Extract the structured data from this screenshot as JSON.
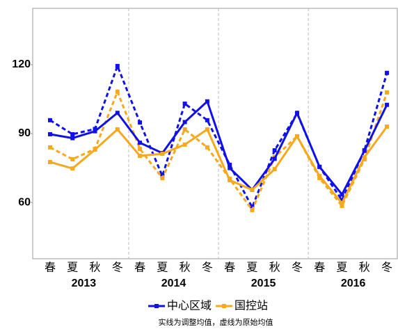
{
  "chart_data": {
    "type": "line",
    "categories": [
      "春",
      "夏",
      "秋",
      "冬",
      "春",
      "夏",
      "秋",
      "冬",
      "春",
      "夏",
      "秋",
      "冬",
      "春",
      "夏",
      "秋",
      "冬"
    ],
    "years": [
      "2013",
      "2014",
      "2015",
      "2016"
    ],
    "series": [
      {
        "name": "中心区域",
        "color": "#1010e8",
        "values": [
          89.7,
          88,
          91,
          99,
          86,
          81.5,
          95,
          104,
          75,
          65.5,
          79,
          99,
          75.5,
          63.5,
          82.5,
          102.5
        ],
        "raw_values": [
          95.8,
          89.7,
          92,
          119.4,
          94.8,
          71.5,
          103,
          95.8,
          76.4,
          57.9,
          82.7,
          98.8,
          75.5,
          61,
          82.7,
          116.4
        ]
      },
      {
        "name": "国控站",
        "color": "#f7a81b",
        "values": [
          77.6,
          74.8,
          83,
          91.8,
          80.3,
          81.2,
          85.2,
          91.8,
          69.7,
          65.5,
          74.5,
          88.8,
          71.5,
          59.7,
          79.7,
          93
        ],
        "raw_values": [
          84,
          78.8,
          83.3,
          108.2,
          83.3,
          70.6,
          91.8,
          84,
          70.3,
          56.7,
          79.7,
          88.8,
          70.6,
          58.5,
          78.8,
          107.9
        ]
      }
    ],
    "ylim": [
      35.5,
      144.5
    ],
    "yticks": [
      60,
      90,
      120
    ],
    "note": "实线为调整均值，虚线为原始均值"
  }
}
